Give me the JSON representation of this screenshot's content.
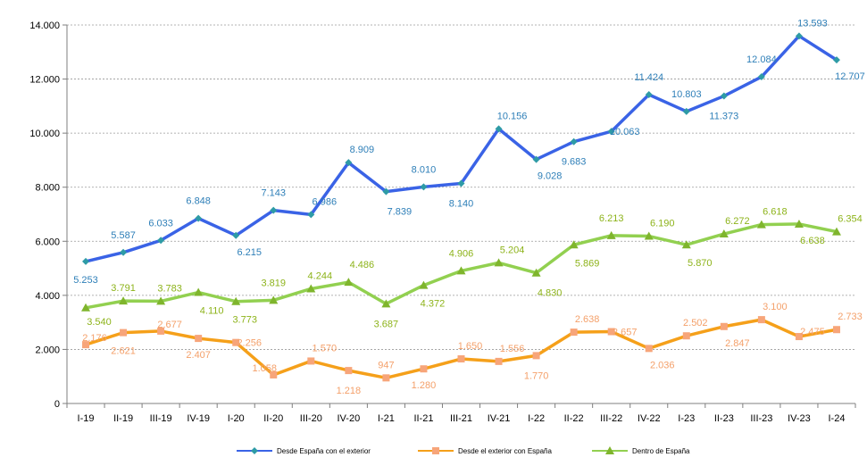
{
  "chart_data": {
    "type": "line",
    "categories": [
      "I-19",
      "II-19",
      "III-19",
      "IV-19",
      "I-20",
      "II-20",
      "III-20",
      "IV-20",
      "I-21",
      "II-21",
      "III-21",
      "IV-21",
      "I-22",
      "II-22",
      "III-22",
      "IV-22",
      "I-23",
      "II-23",
      "III-23",
      "IV-23",
      "I-24"
    ],
    "ylim": [
      0,
      14000
    ],
    "yticks": [
      "0",
      "2.000",
      "4.000",
      "6.000",
      "8.000",
      "10.000",
      "12.000",
      "14.000"
    ],
    "grid": true,
    "legend_position": "bottom",
    "series": [
      {
        "name": "Desde España con el exterior",
        "color": "#3A63E6",
        "label_color": "#2E7FB8",
        "marker": "diamond",
        "values": [
          5253,
          5587,
          6033,
          6848,
          6215,
          7143,
          6986,
          8909,
          7839,
          8010,
          8140,
          10156,
          9028,
          9683,
          10063,
          11424,
          10803,
          11373,
          12084,
          13593,
          12707
        ],
        "labels": [
          "5.253",
          "5.587",
          "6.033",
          "6.848",
          "6.215",
          "7.143",
          "6.986",
          "8.909",
          "7.839",
          "8.010",
          "8.140",
          "10.156",
          "9.028",
          "9.683",
          "10.063",
          "11.424",
          "10.803",
          "11.373",
          "12.084",
          "13.593",
          "12.707"
        ]
      },
      {
        "name": "Desde el exterior con España",
        "color": "#F5A01A",
        "label_color": "#F4A06A",
        "marker": "square",
        "values": [
          2176,
          2621,
          2677,
          2407,
          2256,
          1058,
          1570,
          1218,
          947,
          1280,
          1650,
          1556,
          1770,
          2638,
          2657,
          2036,
          2502,
          2847,
          3100,
          2475,
          2733
        ],
        "labels": [
          "2.176",
          "2.621",
          "2.677",
          "2.407",
          "2.256",
          "1.058",
          "1.570",
          "1.218",
          "947",
          "1.280",
          "1.650",
          "1.556",
          "1.770",
          "2.638",
          "2.657",
          "2.036",
          "2.502",
          "2.847",
          "3.100",
          "2.475",
          "2.733"
        ]
      },
      {
        "name": "Dentro de España",
        "color": "#92D050",
        "label_color": "#8DB31A",
        "marker": "triangle",
        "values": [
          3540,
          3791,
          3783,
          4110,
          3773,
          3819,
          4244,
          4486,
          3687,
          4372,
          4906,
          5204,
          4830,
          5869,
          6213,
          6190,
          5870,
          6272,
          6618,
          6638,
          6354
        ],
        "labels": [
          "3.540",
          "3.791",
          "3.783",
          "4.110",
          "3.773",
          "3.819",
          "4.244",
          "4.486",
          "3.687",
          "4.372",
          "4.906",
          "5.204",
          "4.830",
          "5.869",
          "6.213",
          "6.190",
          "5.870",
          "6.272",
          "6.618",
          "6.638",
          "6.354"
        ]
      }
    ]
  }
}
